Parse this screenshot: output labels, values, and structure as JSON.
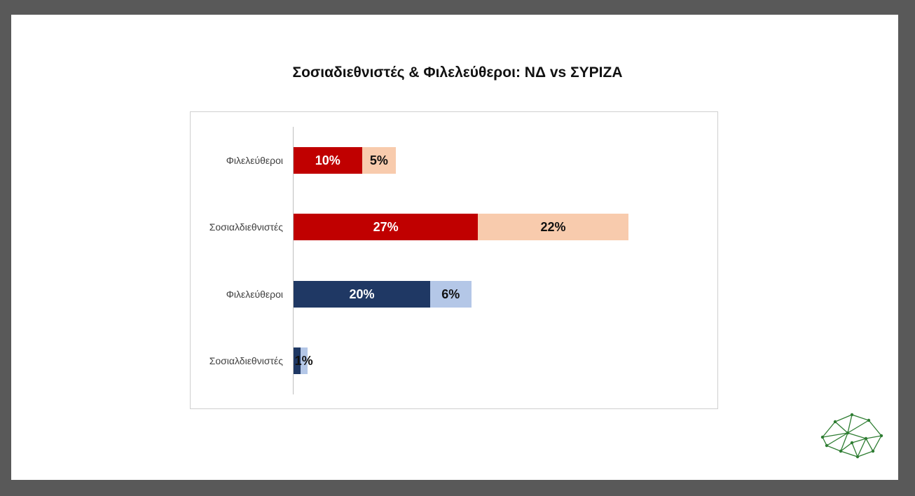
{
  "chart_data": {
    "type": "bar",
    "orientation": "horizontal",
    "stacked": true,
    "title": "Σοσιαδιεθνιστές & Φιλελεύθεροι: ΝΔ vs ΣΥΡΙΖΑ",
    "categories": [
      "Φιλελεύθεροι",
      "Σοσιαλδιεθνιστές",
      "Φιλελεύθεροι",
      "Σοσιαλδιεθνιστές"
    ],
    "rows": [
      {
        "label": "Φιλελεύθεροι",
        "segments": [
          {
            "value": 10,
            "label": "10%",
            "color": "#c00000",
            "text_color": "#ffffff"
          },
          {
            "value": 5,
            "label": "5%",
            "color": "#f8cbad",
            "text_color": "#111111"
          }
        ]
      },
      {
        "label": "Σοσιαλδιεθνιστές",
        "segments": [
          {
            "value": 27,
            "label": "27%",
            "color": "#c00000",
            "text_color": "#ffffff"
          },
          {
            "value": 22,
            "label": "22%",
            "color": "#f8cbad",
            "text_color": "#111111"
          }
        ]
      },
      {
        "label": "Φιλελεύθεροι",
        "segments": [
          {
            "value": 20,
            "label": "20%",
            "color": "#1f3864",
            "text_color": "#ffffff"
          },
          {
            "value": 6,
            "label": "6%",
            "color": "#b4c7e7",
            "text_color": "#111111"
          }
        ]
      },
      {
        "label": "Σοσιαλδιεθνιστές",
        "segments": [
          {
            "value": 1,
            "label": "",
            "color": "#1f3864",
            "text_color": "#ffffff"
          },
          {
            "value": 1,
            "label": "1%",
            "color": "#b4c7e7",
            "text_color": "#111111"
          }
        ]
      }
    ],
    "xlim": [
      0,
      50
    ],
    "grid": false,
    "legend": "none"
  },
  "logo": {
    "icon": "network-mesh-icon",
    "color": "#2e7d32"
  }
}
